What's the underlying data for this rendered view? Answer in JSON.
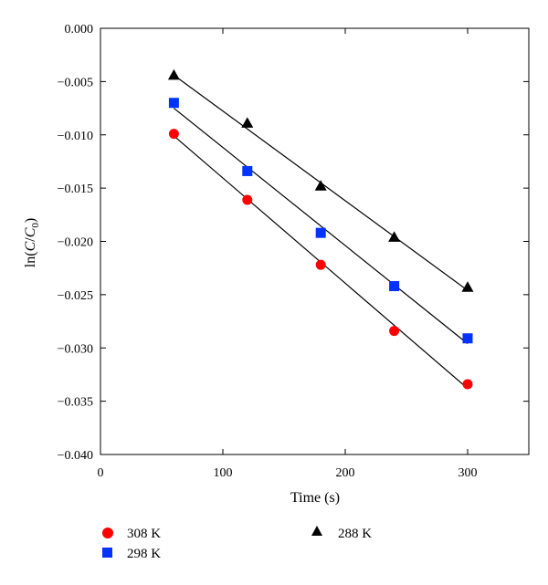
{
  "chart_data": {
    "type": "scatter",
    "xlabel": "Time (s)",
    "ylabel": {
      "prefix": "ln(",
      "var": "C",
      "slash": "/",
      "base": "C",
      "sub": "0",
      "suffix": ")"
    },
    "xlim": [
      0,
      350
    ],
    "ylim": [
      -0.04,
      0.0
    ],
    "xticks": [
      0,
      100,
      200,
      300
    ],
    "yticks": [
      0.0,
      -0.005,
      -0.01,
      -0.015,
      -0.02,
      -0.025,
      -0.03,
      -0.035,
      -0.04
    ],
    "xtick_labels": [
      "0",
      "100",
      "200",
      "300"
    ],
    "ytick_labels": [
      "0.000",
      "−0.005",
      "−0.010",
      "−0.015",
      "−0.020",
      "−0.025",
      "−0.030",
      "−0.035",
      "−0.040"
    ],
    "grid": false,
    "legend_position": "bottom",
    "series": [
      {
        "name": "308 K",
        "marker": "circle",
        "color": "#ff0000",
        "x": [
          60,
          120,
          180,
          240,
          300
        ],
        "y": [
          -0.0099,
          -0.0161,
          -0.0222,
          -0.0284,
          -0.0334
        ],
        "fit": {
          "x": [
            60,
            300
          ],
          "y": [
            -0.0101,
            -0.0338
          ]
        }
      },
      {
        "name": "298 K",
        "marker": "square",
        "color": "#0033ff",
        "x": [
          60,
          120,
          180,
          240,
          300
        ],
        "y": [
          -0.007,
          -0.0134,
          -0.0192,
          -0.0242,
          -0.0291
        ],
        "fit": {
          "x": [
            60,
            300
          ],
          "y": [
            -0.0075,
            -0.0296
          ]
        }
      },
      {
        "name": "288 K",
        "marker": "triangle",
        "color": "#000000",
        "x": [
          60,
          120,
          180,
          240,
          300
        ],
        "y": [
          -0.0044,
          -0.0089,
          -0.0148,
          -0.0196,
          -0.0243
        ],
        "fit": {
          "x": [
            60,
            300
          ],
          "y": [
            -0.0044,
            -0.0246
          ]
        }
      }
    ]
  }
}
